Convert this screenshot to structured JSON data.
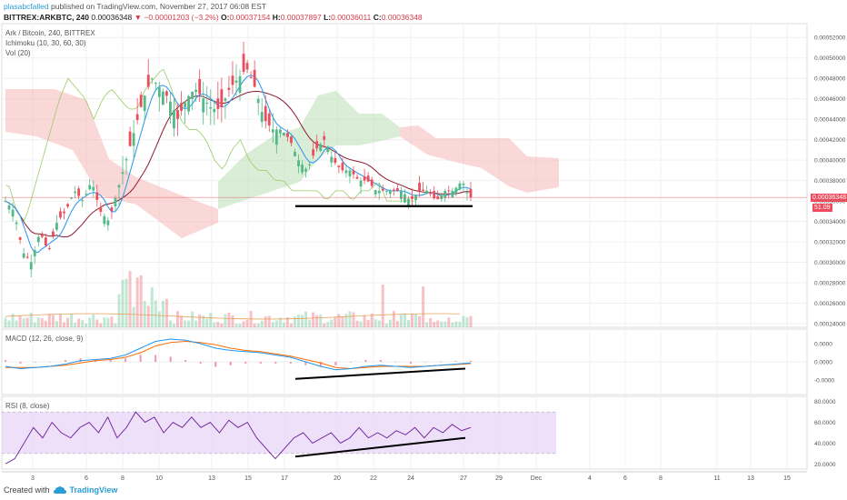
{
  "header": {
    "username": "plasabcfalled",
    "published": "published on TradingView.com, November 27, 2017 06:08 EST",
    "symbol": "BITTREX:ARKBTC, 240",
    "last": "0.00036348",
    "change": "▼ −0.00001203 (−3.2%)",
    "o_label": "O:",
    "o_value": "0.00037154",
    "h_label": "H:",
    "h_value": "0.00037897",
    "l_label": "L:",
    "l_value": "0.00036011",
    "c_label": "C:",
    "c_value": "0.00036348"
  },
  "legend": {
    "main": "Ark / Bitcoin, 240, BITTREX",
    "ichimoku": "Ichimoku (10, 30, 60, 30)",
    "vol": "Vol (20)",
    "macd": "MACD (12, 26, close, 9)",
    "rsi": "RSI (8, close)"
  },
  "price_label": "0.00036348",
  "vol_label": "51.09",
  "footer": {
    "created": "Created with",
    "brand": "TradingView"
  },
  "colors": {
    "up": "#53b987",
    "down": "#eb4d5c",
    "cloud_up": "#b9dfb6",
    "cloud_down": "#f5b8b8",
    "tenkan": "#2196f3",
    "kijun": "#8b1a2f",
    "chikou": "#9ccc65",
    "macd": "#2196f3",
    "signal": "#ff6d00",
    "rsi": "#6a1b9a",
    "rsi_band": "#ead8f7",
    "trendline": "#000000"
  },
  "chart_data": [
    {
      "type": "candlestick",
      "title": "Ark / Bitcoin, 240, BITTREX",
      "x_ticks": [
        "3",
        "6",
        "8",
        "10",
        "13",
        "15",
        "17",
        "20",
        "22",
        "24",
        "27",
        "29",
        "Dec",
        "4",
        "6",
        "8",
        "11",
        "13",
        "15"
      ],
      "y_ticks": [
        "0.00052000",
        "0.00050000",
        "0.00048000",
        "0.00046000",
        "0.00044000",
        "0.00042000",
        "0.00040000",
        "0.00038000",
        "0.00036000",
        "0.00034000",
        "0.00032000",
        "0.00030000",
        "0.00028000",
        "0.00026000",
        "0.00024000"
      ],
      "ylim": [
        0.00024,
        0.00053
      ],
      "close_path": [
        0.00036,
        0.00035,
        0.00031,
        0.0003,
        0.00033,
        0.00031,
        0.00034,
        0.00035,
        0.00037,
        0.00036,
        0.00038,
        0.00035,
        0.00034,
        0.00037,
        0.0004,
        0.00043,
        0.00046,
        0.00048,
        0.00047,
        0.00046,
        0.00044,
        0.00046,
        0.00047,
        0.00046,
        0.00045,
        0.00045,
        0.00047,
        0.00048,
        0.00049,
        0.00047,
        0.00044,
        0.00043,
        0.00043,
        0.00042,
        0.0004,
        0.00039,
        0.00041,
        0.00042,
        0.0004,
        0.00039,
        0.00039,
        0.00038,
        0.00038,
        0.00037,
        0.00037,
        0.00037,
        0.00037,
        0.00036,
        0.00037,
        0.00037,
        0.00036,
        0.00037,
        0.00037,
        0.00038,
        0.00036
      ],
      "support_line": 0.000355,
      "last_price": 0.00036348,
      "indicators": [
        "Ichimoku (10, 30, 60, 30)",
        "Vol (20)"
      ]
    },
    {
      "type": "line",
      "title": "MACD (12, 26, close, 9)",
      "y_ticks": [
        "0.0000",
        "0.0000",
        "-0.0000"
      ],
      "series": [
        {
          "name": "MACD",
          "values": [
            -0.2,
            -0.3,
            -0.25,
            -0.2,
            -0.1,
            0.05,
            0.1,
            0.15,
            0.3,
            0.6,
            0.9,
            1.0,
            0.95,
            0.8,
            0.6,
            0.5,
            0.45,
            0.4,
            0.3,
            0.2,
            0.0,
            -0.2,
            -0.35,
            -0.3,
            -0.2,
            -0.15,
            -0.2,
            -0.25,
            -0.2,
            -0.15,
            -0.1,
            -0.05
          ]
        },
        {
          "name": "Signal",
          "values": [
            -0.25,
            -0.25,
            -0.25,
            -0.2,
            -0.15,
            -0.05,
            0.05,
            0.1,
            0.2,
            0.4,
            0.7,
            0.85,
            0.9,
            0.85,
            0.75,
            0.6,
            0.5,
            0.45,
            0.35,
            0.25,
            0.1,
            -0.05,
            -0.25,
            -0.3,
            -0.25,
            -0.2,
            -0.2,
            -0.2,
            -0.2,
            -0.15,
            -0.12,
            -0.08
          ]
        }
      ],
      "ylim": [
        -1.2,
        1.2
      ]
    },
    {
      "type": "line",
      "title": "RSI (8, close)",
      "y_ticks": [
        "80.0000",
        "60.0000",
        "40.0000",
        "20.0000"
      ],
      "ylim": [
        15,
        85
      ],
      "bands": [
        30,
        70
      ],
      "series": [
        {
          "name": "RSI",
          "values": [
            20,
            25,
            40,
            55,
            45,
            60,
            50,
            45,
            55,
            60,
            50,
            65,
            45,
            55,
            70,
            60,
            65,
            50,
            60,
            55,
            65,
            55,
            60,
            50,
            62,
            55,
            60,
            45,
            35,
            25,
            35,
            45,
            50,
            40,
            45,
            50,
            40,
            45,
            55,
            45,
            50,
            45,
            52,
            48,
            55,
            45,
            55,
            50,
            58,
            52,
            55
          ]
        }
      ]
    }
  ]
}
